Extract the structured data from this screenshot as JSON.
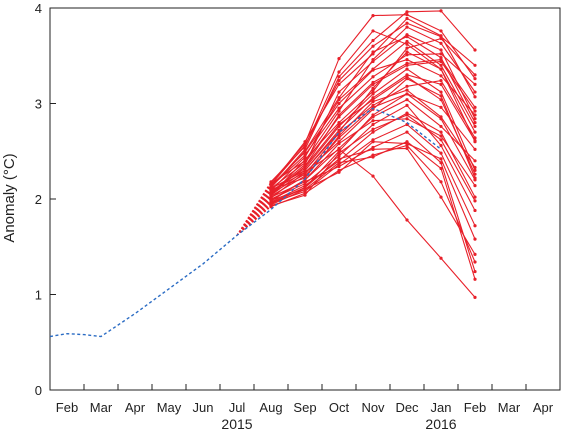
{
  "chart_data": {
    "type": "line",
    "xlabel": "",
    "ylabel": "Anomaly (°C)",
    "ylim": [
      0,
      4
    ],
    "y_ticks": [
      0,
      1,
      2,
      3,
      4
    ],
    "grid": false,
    "legend": "none",
    "x_months": [
      "Feb",
      "Mar",
      "Apr",
      "May",
      "Jun",
      "Jul",
      "Aug",
      "Sep",
      "Oct",
      "Nov",
      "Dec",
      "Jan",
      "Feb",
      "Mar",
      "Apr"
    ],
    "x_years": [
      {
        "label": "2015",
        "center_month_index": 5.0
      },
      {
        "label": "2016",
        "center_month_index": 11.0
      }
    ],
    "observed": {
      "color": "#2b6cc4",
      "style": "dashed",
      "points": [
        [
          -0.5,
          0.56
        ],
        [
          0.0,
          0.59
        ],
        [
          0.5,
          0.58
        ],
        [
          1.0,
          0.56
        ],
        [
          2.0,
          0.8
        ],
        [
          3.0,
          1.06
        ],
        [
          4.0,
          1.32
        ],
        [
          5.0,
          1.62
        ],
        [
          6.0,
          1.89
        ],
        [
          7.0,
          2.21
        ],
        [
          8.0,
          2.7
        ],
        [
          9.0,
          2.95
        ],
        [
          10.0,
          2.8
        ],
        [
          11.0,
          2.52
        ]
      ]
    },
    "forecast_color": "#e8202a",
    "forecast_start": [
      5.0,
      1.62
    ],
    "forecast_months": [
      6,
      7,
      8,
      9,
      10,
      11,
      12
    ],
    "ensemble": [
      [
        2.17,
        2.58,
        3.47,
        3.92,
        3.93,
        3.76,
        3.26
      ],
      [
        2.12,
        2.52,
        3.28,
        3.66,
        3.96,
        3.97,
        3.56
      ],
      [
        2.15,
        2.6,
        3.2,
        3.52,
        3.89,
        3.71,
        3.07
      ],
      [
        2.09,
        2.44,
        3.04,
        3.36,
        3.65,
        3.4,
        2.76
      ],
      [
        2.05,
        2.34,
        2.88,
        3.22,
        3.42,
        3.46,
        2.96
      ],
      [
        2.11,
        2.3,
        2.72,
        3.06,
        3.3,
        3.2,
        2.61
      ],
      [
        2.07,
        2.36,
        3.12,
        3.44,
        3.72,
        3.56,
        2.84
      ],
      [
        2.01,
        2.28,
        2.6,
        2.94,
        3.26,
        3.08,
        2.22
      ],
      [
        2.13,
        2.46,
        2.95,
        3.28,
        3.51,
        3.52,
        3.2
      ],
      [
        1.96,
        2.08,
        2.36,
        2.62,
        2.78,
        2.48,
        1.72
      ],
      [
        2.18,
        2.55,
        3.33,
        3.76,
        3.62,
        3.36,
        2.7
      ],
      [
        2.1,
        2.22,
        2.66,
        3.02,
        3.14,
        2.86,
        2.33
      ],
      [
        1.93,
        2.04,
        2.48,
        2.73,
        2.88,
        2.62,
        1.98
      ],
      [
        2.04,
        2.41,
        2.8,
        3.13,
        3.58,
        3.68,
        3.3
      ],
      [
        1.98,
        2.2,
        2.53,
        2.86,
        3.04,
        2.76,
        2.4
      ],
      [
        1.95,
        2.12,
        2.42,
        2.52,
        2.53,
        2.02,
        1.42
      ],
      [
        2.06,
        2.26,
        2.69,
        2.98,
        3.18,
        3.24,
        2.64
      ],
      [
        2.02,
        2.18,
        2.34,
        2.54,
        2.7,
        2.38,
        1.24
      ],
      [
        2.14,
        2.49,
        3.0,
        3.35,
        3.46,
        3.29,
        2.88
      ],
      [
        1.99,
        2.1,
        2.28,
        2.6,
        2.58,
        2.42,
        1.58
      ],
      [
        2.08,
        2.32,
        2.76,
        3.1,
        3.36,
        3.12,
        2.3
      ],
      [
        2.16,
        2.4,
        2.92,
        3.46,
        3.8,
        3.63,
        3.12
      ],
      [
        1.92,
        2.06,
        2.3,
        2.46,
        2.56,
        2.18,
        1.34
      ],
      [
        2.03,
        2.24,
        2.64,
        2.96,
        3.1,
        2.96,
        2.52
      ],
      [
        1.97,
        2.14,
        2.4,
        2.7,
        2.9,
        2.7,
        2.02
      ],
      [
        2.11,
        2.38,
        2.86,
        3.2,
        3.4,
        3.44,
        2.92
      ],
      [
        2.0,
        2.16,
        2.45,
        2.78,
        2.98,
        2.56,
        1.88
      ],
      [
        2.12,
        2.5,
        3.06,
        3.54,
        3.7,
        3.48,
        2.8
      ],
      [
        1.94,
        2.1,
        2.38,
        2.44,
        2.6,
        2.32,
        1.16
      ],
      [
        2.06,
        2.34,
        2.78,
        3.04,
        3.28,
        3.04,
        2.26
      ],
      [
        1.99,
        2.2,
        2.58,
        2.82,
        2.84,
        2.66,
        2.14
      ],
      [
        2.09,
        2.28,
        2.52,
        2.24,
        1.78,
        1.38,
        0.97
      ],
      [
        2.04,
        2.3,
        2.7,
        3.16,
        3.54,
        3.36,
        2.6
      ],
      [
        2.15,
        2.56,
        3.24,
        3.6,
        3.84,
        3.7,
        3.4
      ],
      [
        1.96,
        2.12,
        2.5,
        2.88,
        3.1,
        2.84,
        2.2
      ]
    ]
  }
}
